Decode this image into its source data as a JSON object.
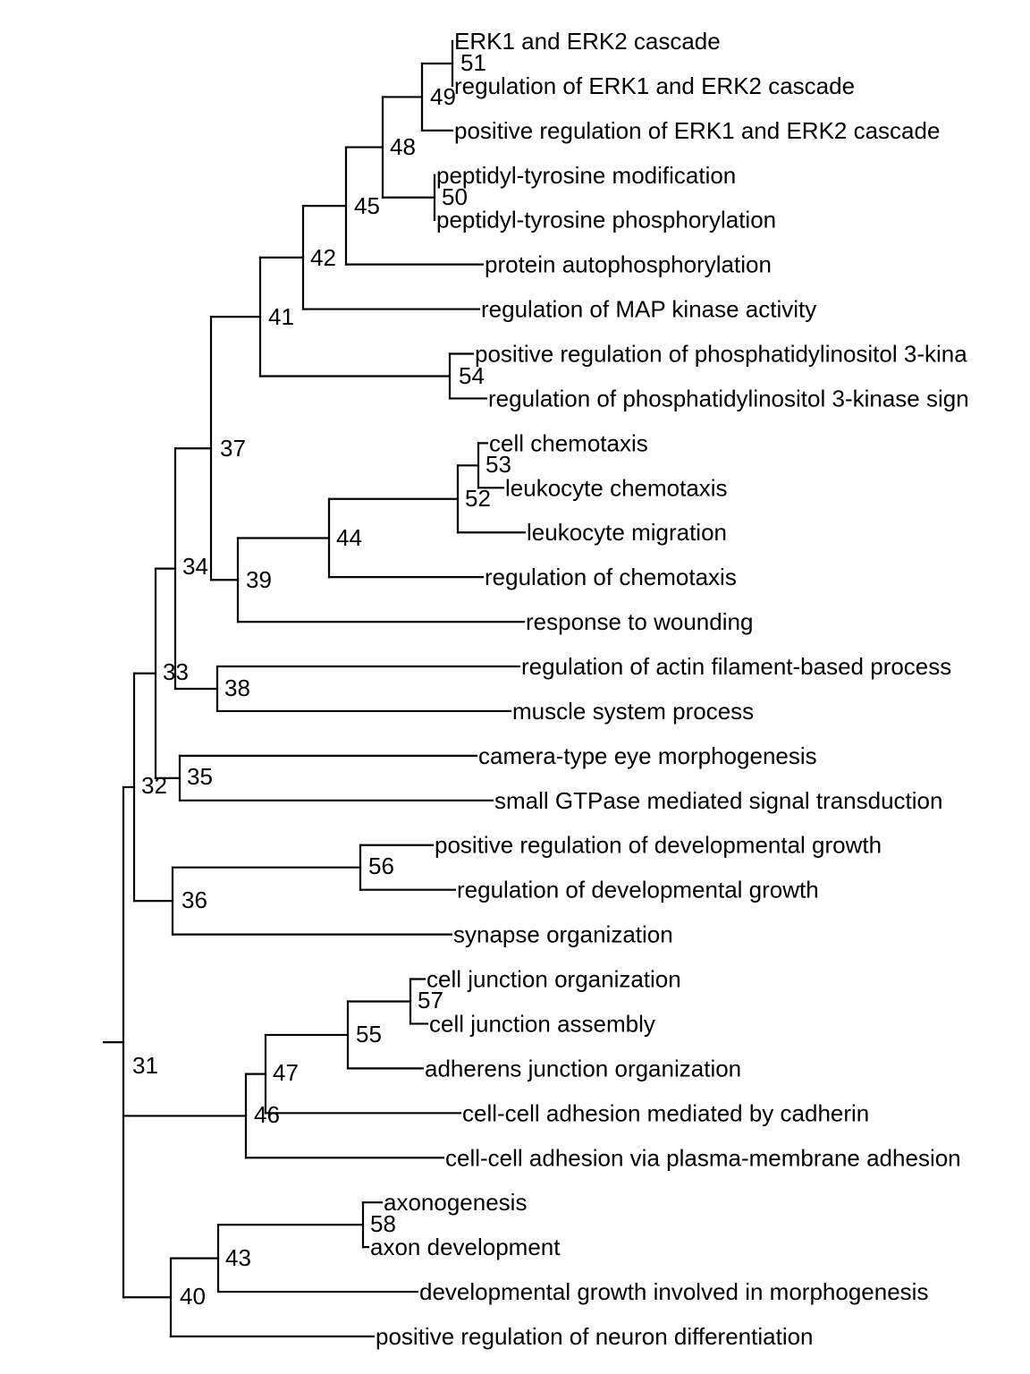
{
  "diagram": {
    "type": "dendrogram",
    "colors": {
      "line": "#000000",
      "text": "#000000",
      "background": "#ffffff"
    },
    "tips": [
      "ERK1 and ERK2 cascade",
      "regulation of ERK1 and ERK2 cascade",
      "positive regulation of ERK1 and ERK2 cascade",
      "peptidyl-tyrosine modification",
      "peptidyl-tyrosine phosphorylation",
      "protein autophosphorylation",
      "regulation of MAP kinase activity",
      "positive regulation of phosphatidylinositol 3-kina",
      "regulation of phosphatidylinositol 3-kinase sign",
      "cell chemotaxis",
      "leukocyte chemotaxis",
      "leukocyte migration",
      "regulation of chemotaxis",
      "response to wounding",
      "regulation of actin filament-based process",
      "muscle system process",
      "camera-type eye morphogenesis",
      "small GTPase mediated signal transduction",
      "positive regulation of developmental growth",
      "regulation of developmental growth",
      "synapse organization",
      "cell junction organization",
      "cell junction assembly",
      "adherens junction organization",
      "cell-cell adhesion mediated by cadherin",
      "cell-cell adhesion via plasma-membrane adhesion",
      "axonogenesis",
      "axon development",
      "developmental growth involved in morphogenesis",
      "positive regulation of neuron differentiation"
    ],
    "nodes": [
      "31",
      "32",
      "33",
      "34",
      "35",
      "36",
      "37",
      "38",
      "39",
      "40",
      "41",
      "42",
      "43",
      "44",
      "45",
      "46",
      "47",
      "48",
      "49",
      "50",
      "51",
      "52",
      "53",
      "54",
      "55",
      "56",
      "57",
      "58"
    ]
  }
}
